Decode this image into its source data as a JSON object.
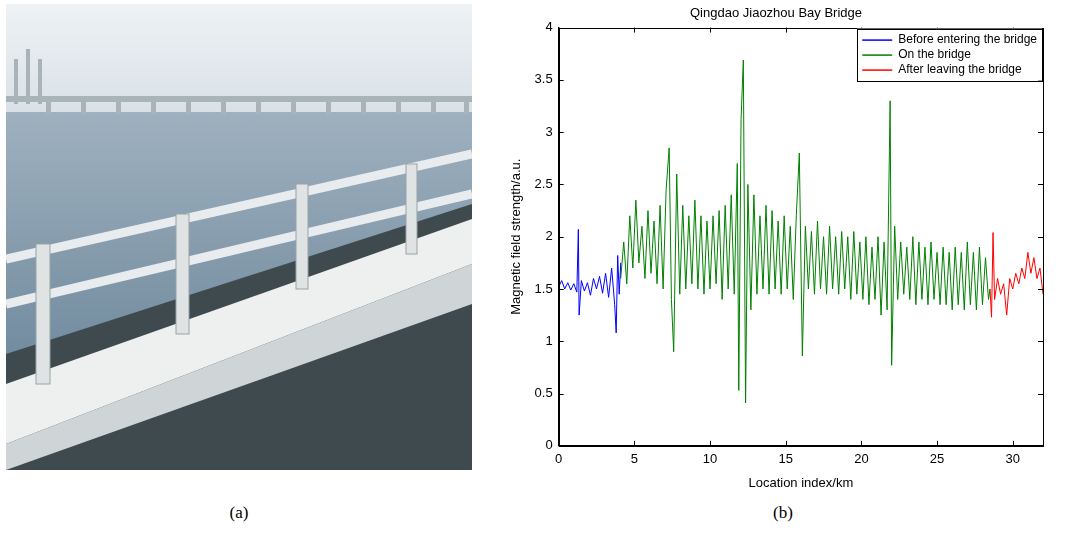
{
  "panel_labels": [
    "(a)",
    "(b)"
  ],
  "chart_data": {
    "type": "line",
    "title": "Qingdao Jiaozhou Bay Bridge",
    "x_label": "Location index/km",
    "y_label": "Magnetic field strength/a.u.",
    "xlim": [
      0,
      32
    ],
    "xticks": [
      0,
      5,
      10,
      15,
      20,
      25,
      30
    ],
    "ylim": [
      0,
      4
    ],
    "yticks": [
      0,
      0.5,
      1,
      1.5,
      2,
      2.5,
      3,
      3.5,
      4
    ],
    "grid": false,
    "legend": "upper right",
    "series": [
      {
        "name": "Before entering the bridge",
        "color": "#0000ff",
        "x": [
          0,
          0.2,
          0.4,
          0.6,
          0.8,
          1.0,
          1.2,
          1.3,
          1.35,
          1.5,
          1.7,
          1.9,
          2.1,
          2.3,
          2.5,
          2.7,
          2.9,
          3.1,
          3.3,
          3.5,
          3.7,
          3.8,
          3.9,
          4.0,
          4.1
        ],
        "values": [
          1.52,
          1.58,
          1.5,
          1.56,
          1.49,
          1.55,
          1.47,
          2.07,
          1.25,
          1.58,
          1.48,
          1.56,
          1.44,
          1.6,
          1.5,
          1.62,
          1.46,
          1.65,
          1.42,
          1.7,
          1.35,
          1.08,
          1.82,
          1.45,
          1.75
        ]
      },
      {
        "name": "On the bridge",
        "color": "#008000",
        "x": [
          4.1,
          4.3,
          4.5,
          4.7,
          4.9,
          5.1,
          5.3,
          5.5,
          5.7,
          5.9,
          6.1,
          6.3,
          6.5,
          6.7,
          6.9,
          7.1,
          7.3,
          7.45,
          7.6,
          7.8,
          8.0,
          8.2,
          8.4,
          8.6,
          8.8,
          9.0,
          9.2,
          9.4,
          9.6,
          9.8,
          10.0,
          10.2,
          10.4,
          10.6,
          10.8,
          11.0,
          11.2,
          11.4,
          11.6,
          11.8,
          11.9,
          12.05,
          12.2,
          12.35,
          12.5,
          12.7,
          12.9,
          13.1,
          13.3,
          13.5,
          13.7,
          13.9,
          14.1,
          14.3,
          14.5,
          14.7,
          14.9,
          15.1,
          15.3,
          15.5,
          15.7,
          15.9,
          16.1,
          16.3,
          16.5,
          16.7,
          16.9,
          17.1,
          17.3,
          17.5,
          17.7,
          17.9,
          18.1,
          18.3,
          18.5,
          18.7,
          18.9,
          19.1,
          19.3,
          19.5,
          19.7,
          19.9,
          20.1,
          20.3,
          20.5,
          20.7,
          20.9,
          21.1,
          21.3,
          21.5,
          21.7,
          21.9,
          22.0,
          22.2,
          22.4,
          22.6,
          22.8,
          23.0,
          23.2,
          23.4,
          23.6,
          23.8,
          24.0,
          24.2,
          24.4,
          24.6,
          24.8,
          25.0,
          25.2,
          25.4,
          25.6,
          25.8,
          26.0,
          26.2,
          26.4,
          26.6,
          26.8,
          27.0,
          27.2,
          27.4,
          27.6,
          27.8,
          28.0,
          28.2,
          28.4,
          28.5
        ],
        "values": [
          1.6,
          1.95,
          1.55,
          2.2,
          1.7,
          2.35,
          1.75,
          2.1,
          1.6,
          2.25,
          1.65,
          2.15,
          1.55,
          2.3,
          1.5,
          2.45,
          2.85,
          1.4,
          0.9,
          2.6,
          1.45,
          2.3,
          1.5,
          2.2,
          1.55,
          2.35,
          1.5,
          2.2,
          1.45,
          2.15,
          1.5,
          2.2,
          1.55,
          2.25,
          1.4,
          2.3,
          1.5,
          2.4,
          1.45,
          2.7,
          0.53,
          3.12,
          3.69,
          0.41,
          2.5,
          1.3,
          2.4,
          1.45,
          2.2,
          1.5,
          2.3,
          1.45,
          2.25,
          1.5,
          2.15,
          1.45,
          2.2,
          1.5,
          2.1,
          1.4,
          2.2,
          2.8,
          0.86,
          2.1,
          1.5,
          2.05,
          1.45,
          2.15,
          1.5,
          2.0,
          1.45,
          2.1,
          1.5,
          2.0,
          1.45,
          2.05,
          1.5,
          2.0,
          1.4,
          2.05,
          1.45,
          1.95,
          1.4,
          2.0,
          1.35,
          1.9,
          1.4,
          2.0,
          1.25,
          1.95,
          1.3,
          3.3,
          0.77,
          2.1,
          1.4,
          1.95,
          1.45,
          1.9,
          1.4,
          2.0,
          1.35,
          1.95,
          1.4,
          1.9,
          1.35,
          1.95,
          1.4,
          1.85,
          1.35,
          1.9,
          1.35,
          1.85,
          1.3,
          1.9,
          1.35,
          1.85,
          1.3,
          1.95,
          1.35,
          1.85,
          1.3,
          1.9,
          1.35,
          1.8,
          1.4,
          1.5
        ]
      },
      {
        "name": "After leaving the bridge",
        "color": "#ff0000",
        "x": [
          28.5,
          28.6,
          28.7,
          28.8,
          29.0,
          29.2,
          29.4,
          29.6,
          29.8,
          30.0,
          30.2,
          30.4,
          30.6,
          30.8,
          31.0,
          31.2,
          31.4,
          31.6,
          31.8,
          32.0
        ],
        "values": [
          1.5,
          1.23,
          2.04,
          1.4,
          1.6,
          1.45,
          1.55,
          1.25,
          1.6,
          1.5,
          1.65,
          1.55,
          1.7,
          1.6,
          1.85,
          1.65,
          1.8,
          1.6,
          1.7,
          1.45
        ]
      }
    ]
  }
}
